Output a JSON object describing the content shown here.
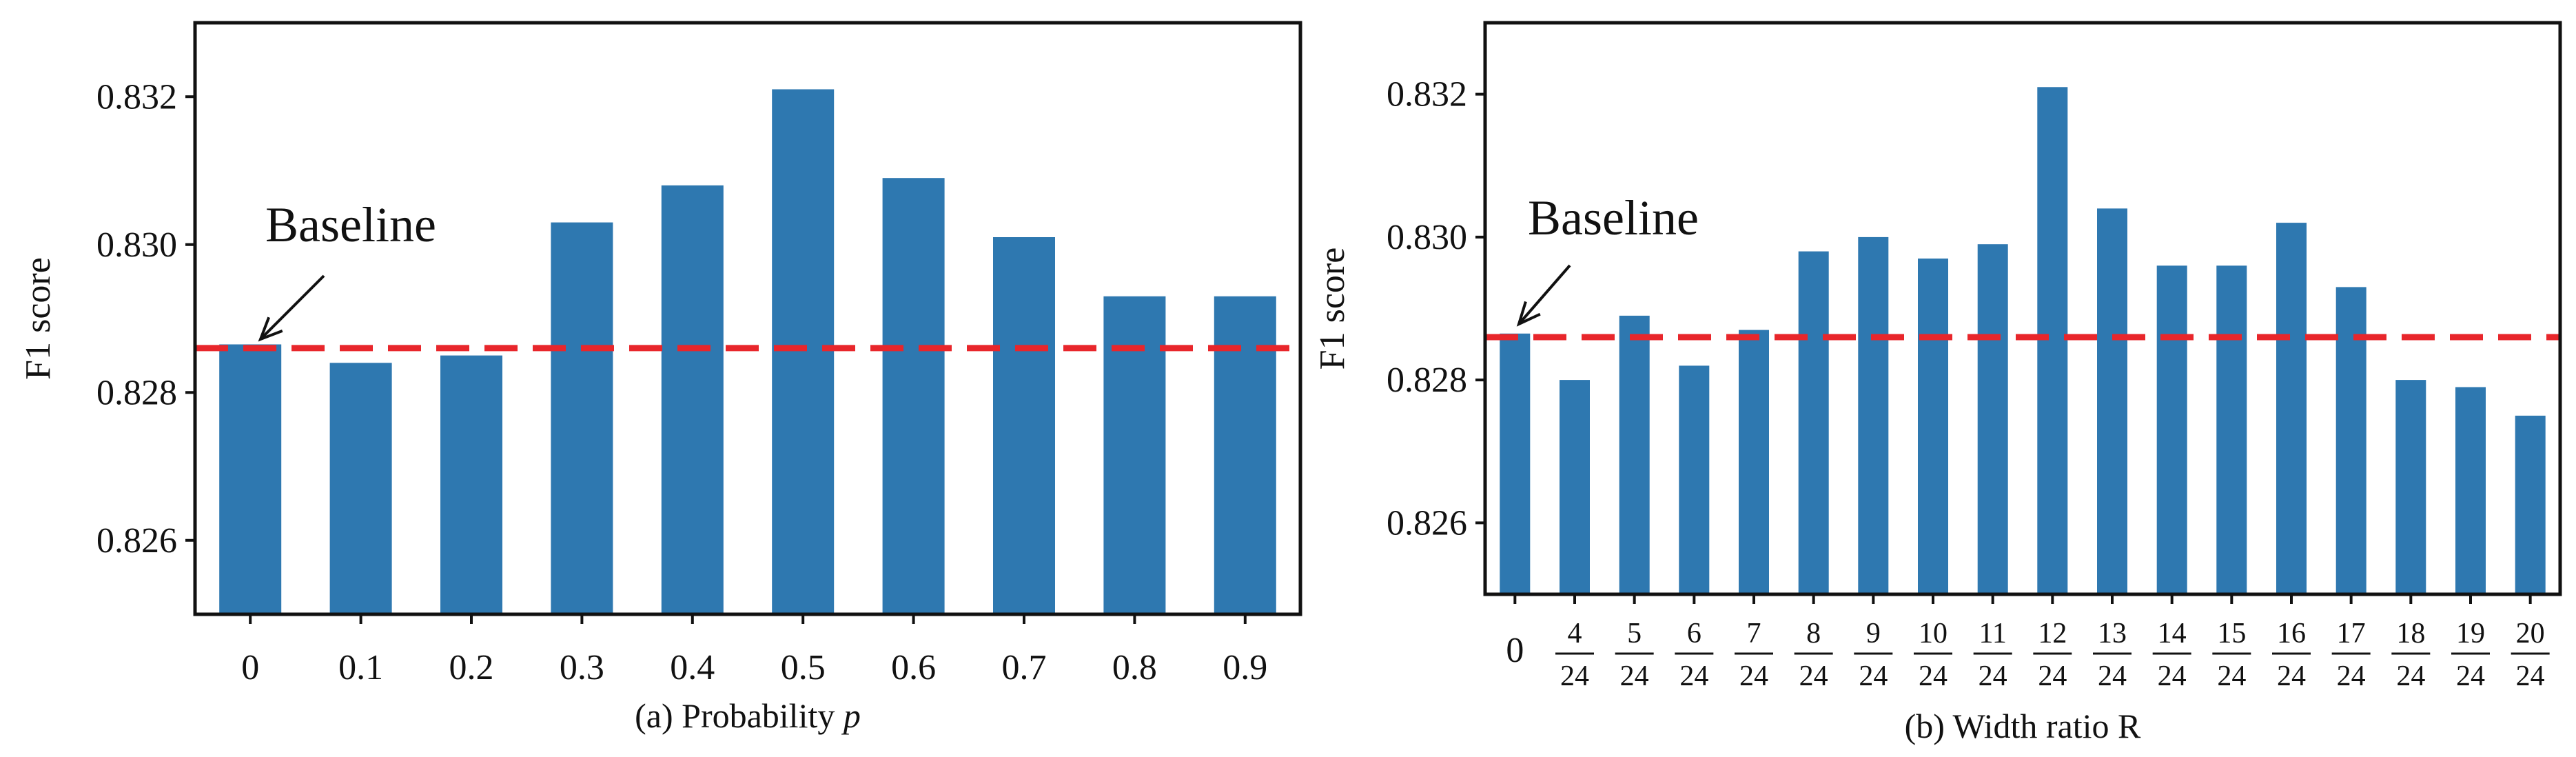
{
  "chart_data": [
    {
      "id": "a",
      "type": "bar",
      "categories": [
        "0",
        "0.1",
        "0.2",
        "0.3",
        "0.4",
        "0.5",
        "0.6",
        "0.7",
        "0.8",
        "0.9"
      ],
      "values": [
        0.82865,
        0.8284,
        0.8285,
        0.8303,
        0.8308,
        0.8321,
        0.8309,
        0.8301,
        0.8293,
        0.8293
      ],
      "baseline": 0.8286,
      "baseline_label": "Baseline",
      "ylim": [
        0.825,
        0.833
      ],
      "yticks": [
        0.826,
        0.828,
        0.83,
        0.832
      ],
      "ytick_labels": [
        "0.826",
        "0.828",
        "0.830",
        "0.832"
      ],
      "ylabel": "F1 score",
      "xlabel_prefix": "(a) Probability ",
      "xlabel_var": "p",
      "bar_color": "#2e78b0",
      "baseline_color": "#e8262b"
    },
    {
      "id": "b",
      "type": "bar",
      "categories": [
        "0",
        "4/24",
        "5/24",
        "6/24",
        "7/24",
        "8/24",
        "9/24",
        "10/24",
        "11/24",
        "12/24",
        "13/24",
        "14/24",
        "15/24",
        "16/24",
        "17/24",
        "18/24",
        "19/24",
        "20/24"
      ],
      "values": [
        0.82865,
        0.828,
        0.8289,
        0.8282,
        0.8287,
        0.8298,
        0.83,
        0.8297,
        0.8299,
        0.8321,
        0.8304,
        0.8296,
        0.8296,
        0.8302,
        0.8293,
        0.828,
        0.8279,
        0.8275
      ],
      "baseline": 0.8286,
      "baseline_label": "Baseline",
      "ylim": [
        0.825,
        0.833
      ],
      "yticks": [
        0.826,
        0.828,
        0.83,
        0.832
      ],
      "ytick_labels": [
        "0.826",
        "0.828",
        "0.830",
        "0.832"
      ],
      "ylabel": "F1 score",
      "xlabel": "(b) Width ratio R",
      "bar_color": "#2e78b0",
      "baseline_color": "#e8262b"
    }
  ]
}
